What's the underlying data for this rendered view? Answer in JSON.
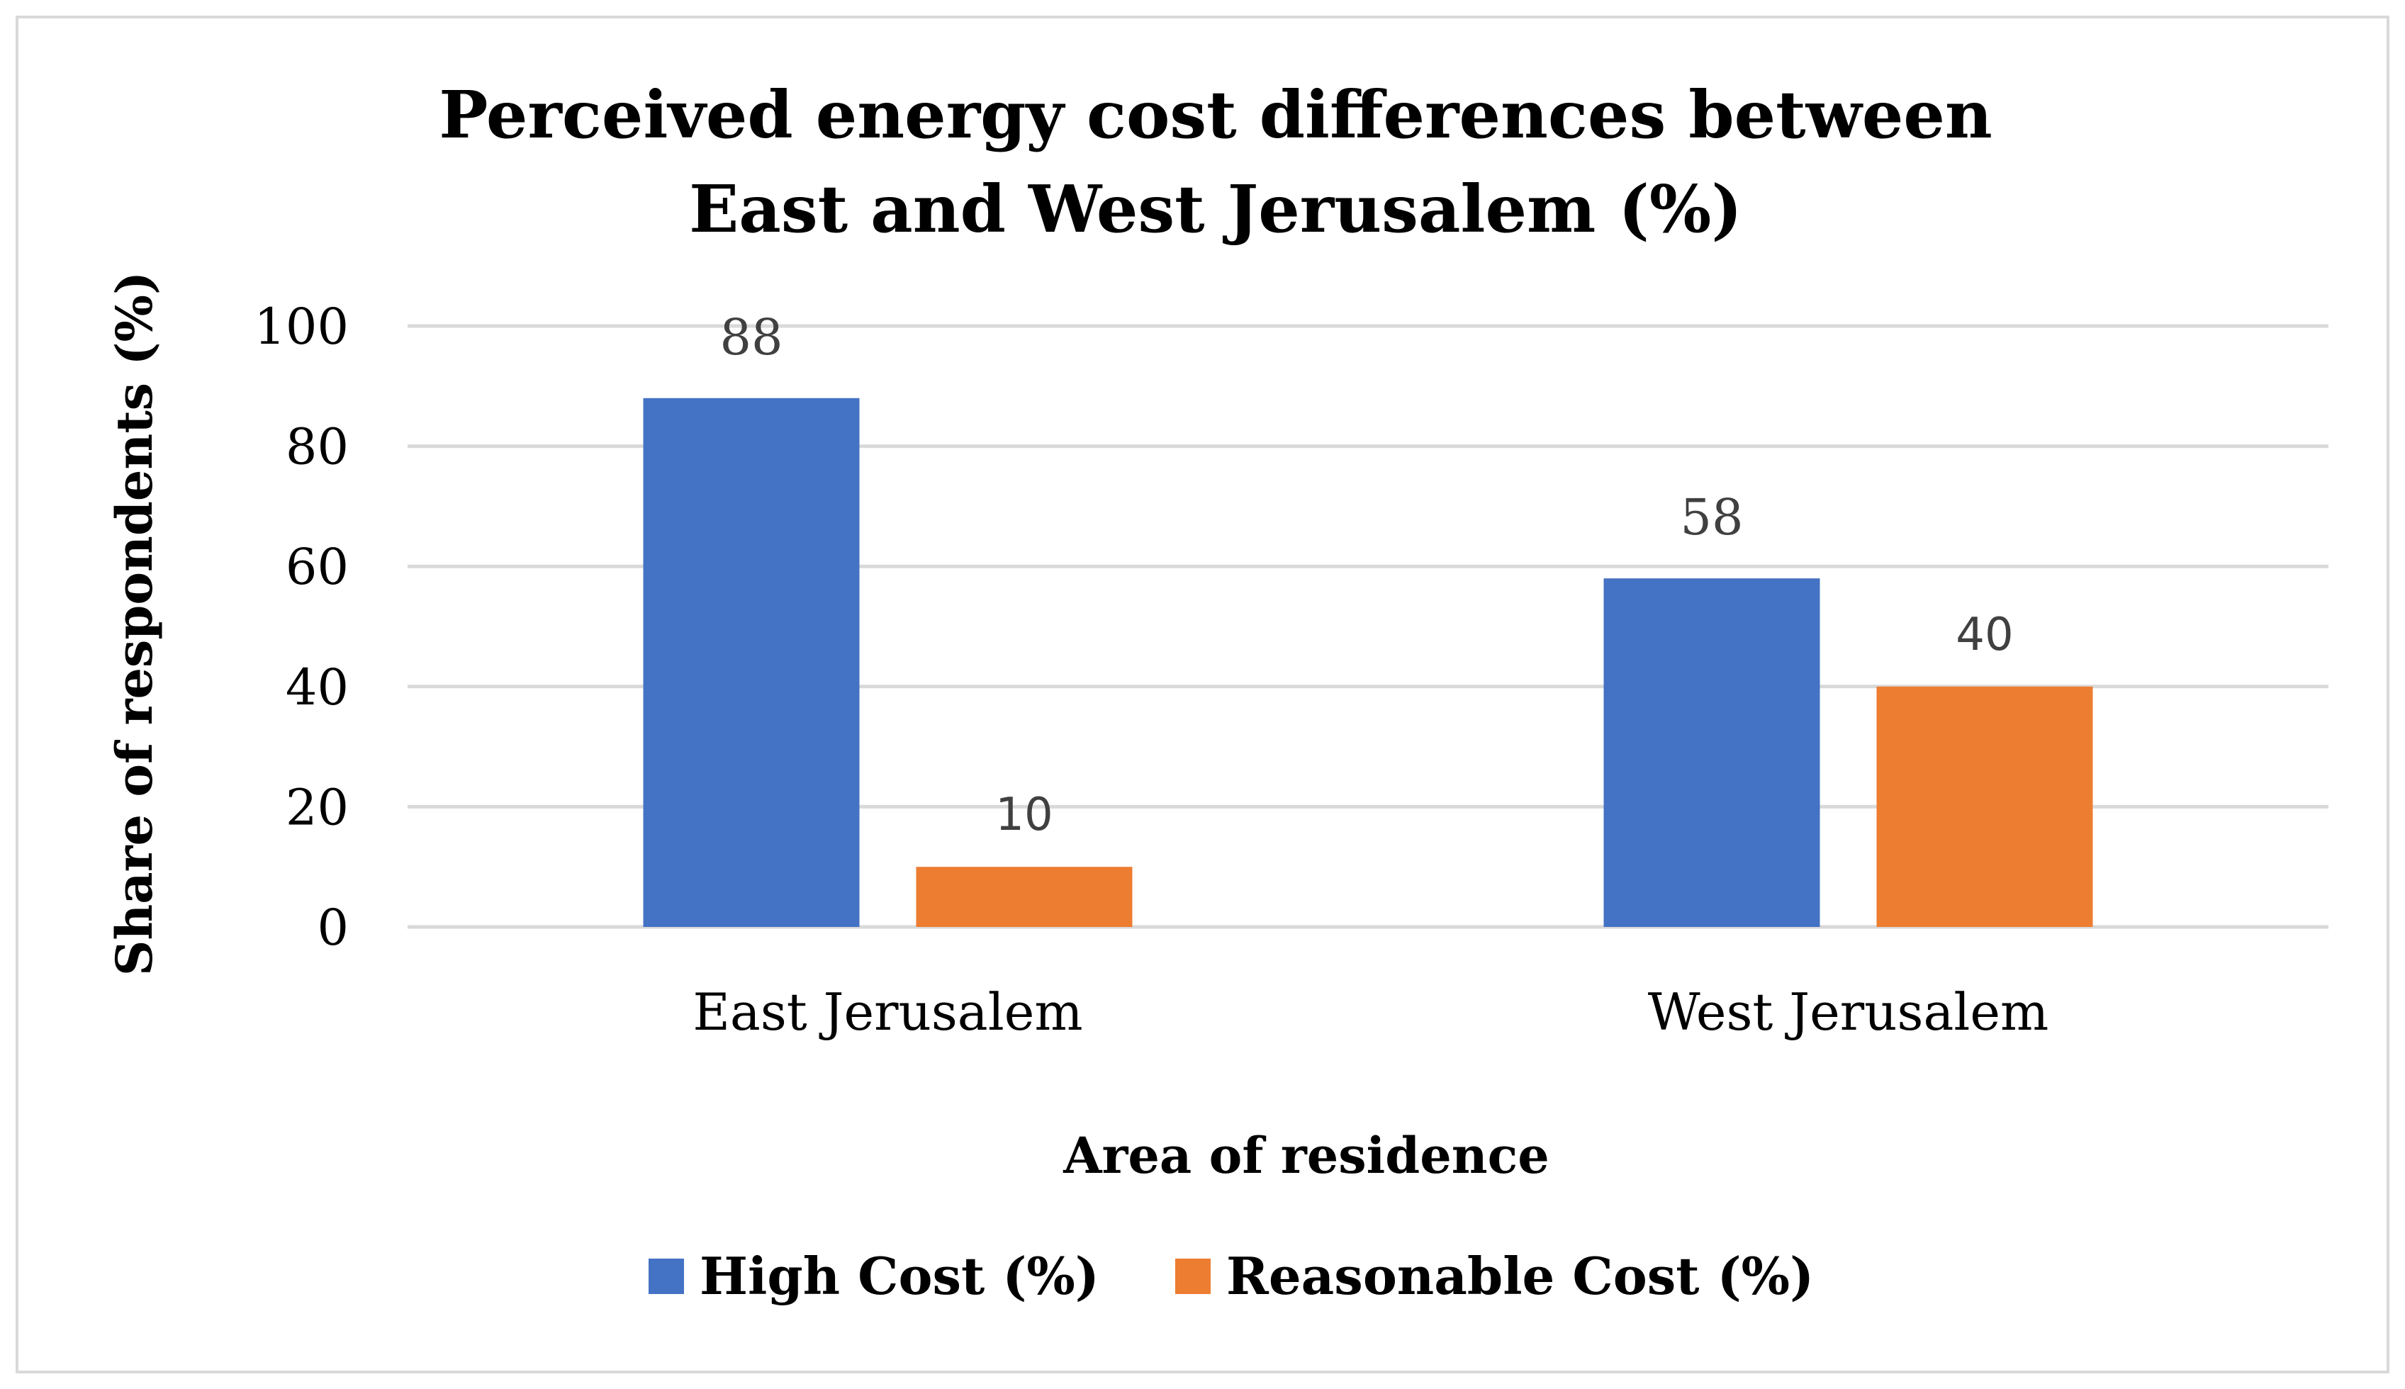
{
  "chart_data": {
    "type": "bar",
    "title": "Perceived energy cost differences between",
    "title_line2": "East and West Jerusalem (%)",
    "xlabel": "Area of residence",
    "ylabel": "Share of respondents (%)",
    "categories": [
      "East Jerusalem",
      "West Jerusalem"
    ],
    "series": [
      {
        "name": "High Cost (%)",
        "values": [
          88,
          58
        ],
        "color": "#4472c4"
      },
      {
        "name": "Reasonable Cost (%)",
        "values": [
          10,
          40
        ],
        "color": "#ed7d31"
      }
    ],
    "ylim": [
      0,
      100
    ],
    "yticks": [
      "0",
      "20",
      "40",
      "60",
      "80",
      "100"
    ],
    "grid": true,
    "legend_position": "bottom"
  }
}
